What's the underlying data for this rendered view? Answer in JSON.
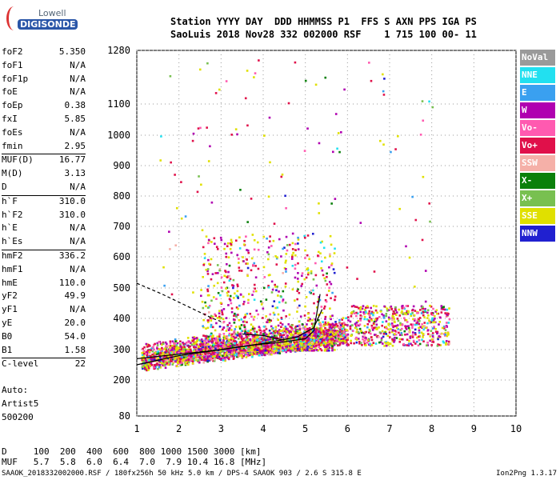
{
  "logo": {
    "line1": "Lowell",
    "line2": "DIGISONDE"
  },
  "header": {
    "row1": "Station YYYY DAY  DDD HHMMSS P1  FFS S AXN PPS IGA PS",
    "row2": "SaoLuis 2018 Nov28 332 002000 RSF    1 715 100 00- 11"
  },
  "params": [
    {
      "name": "foF2",
      "value": "5.350"
    },
    {
      "name": "foF1",
      "value": "N/A"
    },
    {
      "name": "foF1p",
      "value": "N/A"
    },
    {
      "name": "foE",
      "value": "N/A"
    },
    {
      "name": "foEp",
      "value": "0.38"
    },
    {
      "name": "fxI",
      "value": "5.85"
    },
    {
      "name": "foEs",
      "value": "N/A"
    },
    {
      "name": "fmin",
      "value": "2.95"
    },
    {
      "name": "MUF(D)",
      "value": "16.77",
      "sep": true
    },
    {
      "name": "M(D)",
      "value": "3.13"
    },
    {
      "name": "D",
      "value": "N/A"
    },
    {
      "name": "h`F",
      "value": "310.0",
      "sep": true
    },
    {
      "name": "h`F2",
      "value": "310.0"
    },
    {
      "name": "h`E",
      "value": "N/A"
    },
    {
      "name": "h`Es",
      "value": "N/A"
    },
    {
      "name": "hmF2",
      "value": "336.2",
      "sep": true
    },
    {
      "name": "hmF1",
      "value": "N/A"
    },
    {
      "name": "hmE",
      "value": "110.0"
    },
    {
      "name": "yF2",
      "value": "49.9"
    },
    {
      "name": "yF1",
      "value": "N/A"
    },
    {
      "name": "yE",
      "value": "20.0"
    },
    {
      "name": "B0",
      "value": "54.0"
    },
    {
      "name": "B1",
      "value": "1.58"
    },
    {
      "name": "C-level",
      "value": "22",
      "sep": true
    }
  ],
  "auto": {
    "l1": "Auto:",
    "l2": "Artist5",
    "l3": "500200"
  },
  "legend": [
    {
      "label": "NoVal",
      "color": "#9a9a9a"
    },
    {
      "label": "NNE",
      "color": "#22e0f0"
    },
    {
      "label": "E",
      "color": "#3aa0f0"
    },
    {
      "label": "W",
      "color": "#b000b0"
    },
    {
      "label": "Vo-",
      "color": "#ff5ab0"
    },
    {
      "label": "Vo+",
      "color": "#e0104a"
    },
    {
      "label": "SSW",
      "color": "#f5b0a8"
    },
    {
      "label": "X-",
      "color": "#0a800a"
    },
    {
      "label": "X+",
      "color": "#78c050"
    },
    {
      "label": "SSE",
      "color": "#e0e000"
    },
    {
      "label": "NNW",
      "color": "#2020d0"
    }
  ],
  "bottom": {
    "row1": "D     100  200  400  600  800 1000 1500 3000 [km]",
    "row2": "MUF   5.7  5.8  6.0  6.4  7.0  7.9 10.4 16.8 [MHz]"
  },
  "footer": {
    "left": "SAAOK_2018332002000.RSF / 180fx256h 50 kHz 5.0 km / DPS-4 SAAOK 903 / 2.6 S 315.8 E",
    "right": "Ion2Png 1.3.17"
  },
  "chart_data": {
    "type": "scatter",
    "x_ticks": [
      1,
      2,
      3,
      4,
      5,
      6,
      7,
      8,
      9,
      10
    ],
    "y_ticks": [
      80,
      200,
      300,
      400,
      500,
      600,
      700,
      800,
      900,
      1000,
      1100,
      1280
    ],
    "xlim": [
      1,
      10
    ],
    "ylim": [
      80,
      1280
    ],
    "grid": true,
    "trace_curves": [
      {
        "style": "solid",
        "x": [
          1.0,
          2.0,
          3.0,
          3.8,
          4.5,
          5.0,
          5.2,
          5.35
        ],
        "y": [
          250,
          280,
          300,
          315,
          325,
          335,
          360,
          480
        ]
      },
      {
        "style": "solid",
        "x": [
          1.0,
          2.0,
          3.0,
          4.0,
          4.8,
          5.2,
          5.4
        ],
        "y": [
          270,
          285,
          300,
          320,
          340,
          370,
          430
        ]
      },
      {
        "style": "dashed",
        "x": [
          1.0,
          1.6,
          2.2,
          2.8,
          3.0
        ],
        "y": [
          515,
          480,
          440,
          400,
          390
        ]
      },
      {
        "style": "solid",
        "x": [
          3.5,
          4.0,
          4.5
        ],
        "y": [
          350,
          345,
          330
        ]
      }
    ]
  }
}
